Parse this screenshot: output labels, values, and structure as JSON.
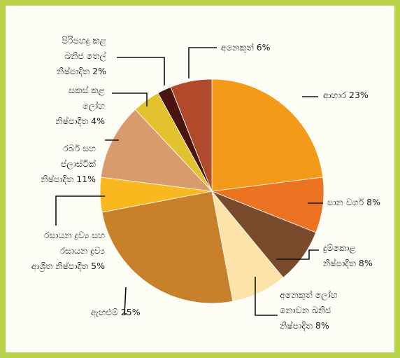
{
  "chart_data": {
    "type": "pie",
    "title": "",
    "start_angle_deg": 0,
    "direction": "clockwise",
    "slices": [
      {
        "label_lines": [
          "ආහාර 23%"
        ],
        "name": "ආහාර",
        "value": 23,
        "color": "#f39a1a"
      },
      {
        "label_lines": [
          "පාන වර්ග 8%"
        ],
        "name": "පාන වර්ග",
        "value": 8,
        "color": "#ec7322"
      },
      {
        "label_lines": [
          "දුම්කොළ",
          "නිෂ්පාදිත 8%"
        ],
        "name": "දුම්කොළ නිෂ්පාදිත",
        "value": 8,
        "color": "#7a4a2c"
      },
      {
        "label_lines": [
          "අනෙකුත් ලෝහ",
          "නොවන ඛනිජ",
          "නිෂ්පාදිත 8%"
        ],
        "name": "අනෙකුත් ලෝහ නොවන ඛනිජ නිෂ්පාදිත",
        "value": 8,
        "color": "#fde3a7"
      },
      {
        "label_lines": [
          "ඇඟළුම් 25%"
        ],
        "name": "ඇඟළුම්",
        "value": 25,
        "color": "#c9802a"
      },
      {
        "label_lines": [
          "රසායන ද්‍රව්‍ය සහ",
          "රසායන ද්‍රව්‍ය",
          "ආශ්‍රිත නිෂ්පාදිත 5%"
        ],
        "name": "රසායන ද්‍රව්‍ය සහ රසායන ද්‍රව්‍ය ආශ්‍රිත නිෂ්පාදිත",
        "value": 5,
        "color": "#f8b81e"
      },
      {
        "label_lines": [
          "රබර් සහ",
          "ප්ලාස්ටික්",
          "නිෂ්පාදිත 11%"
        ],
        "name": "රබර් සහ ප්ලාස්ටික් නිෂ්පාදිත",
        "value": 11,
        "color": "#d99a6c"
      },
      {
        "label_lines": [
          "සකස් කළ",
          "ලෝහ",
          "නිෂ්පාදිත 4%"
        ],
        "name": "සකස් කළ ලෝහ නිෂ්පාදිත",
        "value": 4,
        "color": "#e2c22e"
      },
      {
        "label_lines": [
          "පිරිපහදු කළ",
          "ඛනිජ තෙල්",
          "නිෂ්පාදිත 2%"
        ],
        "name": "පිරිපහදු කළ ඛනිජ තෙල් නිෂ්පාදිත",
        "value": 2,
        "color": "#4a1410"
      },
      {
        "label_lines": [
          "අනෙකුත් 6%"
        ],
        "name": "අනෙකුත්",
        "value": 6,
        "color": "#b14a2a"
      }
    ]
  }
}
